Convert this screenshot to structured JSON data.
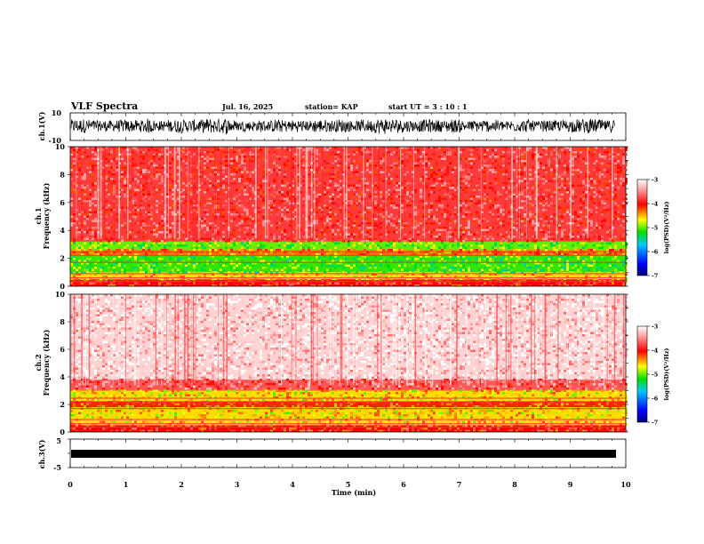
{
  "header": {
    "title": "VLF Spectra",
    "date": "Jul. 16, 2025",
    "station": "station= KAP",
    "start": "start  UT =   3 : 10 : 1"
  },
  "chart_data": [
    {
      "type": "line",
      "name": "ch1 waveform",
      "ylabel": "ch.1(V)",
      "ylim": [
        -10,
        10
      ],
      "ytick_labels": [
        "10",
        "-10"
      ],
      "xlim": [
        0,
        10
      ],
      "data_extent_min": 9.8,
      "description_band": "noisy signal fluctuating roughly between -6 and +7 V"
    },
    {
      "type": "heatmap",
      "name": "ch1 spectrogram",
      "ylabel": "ch.1\nFrequency (kHz)",
      "ylabel_line1": "ch.1",
      "ylabel_line2": "Frequency (kHz)",
      "ylim": [
        0,
        10
      ],
      "ytick_labels": [
        "0",
        "2",
        "4",
        "6",
        "8",
        "10"
      ],
      "xlim": [
        0,
        10
      ],
      "bands": [
        {
          "from_khz": 0.0,
          "to_khz": 0.5,
          "level": -4.0
        },
        {
          "from_khz": 0.5,
          "to_khz": 1.0,
          "level": -4.6
        },
        {
          "from_khz": 1.0,
          "to_khz": 2.2,
          "level": -5.1
        },
        {
          "from_khz": 2.2,
          "to_khz": 2.6,
          "level": -4.3
        },
        {
          "from_khz": 2.6,
          "to_khz": 3.2,
          "level": -5.0
        },
        {
          "from_khz": 3.2,
          "to_khz": 10.0,
          "level": -3.8
        }
      ],
      "colorbar": {
        "label": "log(PSD)(V²/Hz)",
        "range": [
          -7,
          -3
        ],
        "tick_labels": [
          "-3",
          "-4",
          "-5",
          "-6",
          "-7"
        ]
      }
    },
    {
      "type": "heatmap",
      "name": "ch2 spectrogram",
      "ylabel_line1": "ch.2",
      "ylabel_line2": "Frequency (kHz)",
      "ylim": [
        0,
        10
      ],
      "ytick_labels": [
        "0",
        "2",
        "4",
        "6",
        "8",
        "10"
      ],
      "xlim": [
        0,
        10
      ],
      "bands": [
        {
          "from_khz": 0.0,
          "to_khz": 0.5,
          "level": -4.0
        },
        {
          "from_khz": 0.5,
          "to_khz": 1.8,
          "level": -4.6
        },
        {
          "from_khz": 1.8,
          "to_khz": 2.2,
          "level": -4.1
        },
        {
          "from_khz": 2.2,
          "to_khz": 3.0,
          "level": -4.6
        },
        {
          "from_khz": 3.0,
          "to_khz": 3.8,
          "level": -3.7
        },
        {
          "from_khz": 3.8,
          "to_khz": 10.0,
          "level": -3.2
        }
      ],
      "colorbar": {
        "label": "log(PSD)(V²/Hz)",
        "range": [
          -7,
          -3
        ],
        "tick_labels": [
          "-3",
          "-4",
          "-5",
          "-6",
          "-7"
        ]
      }
    },
    {
      "type": "line",
      "name": "ch3 waveform",
      "ylabel": "ch.3(V)",
      "ylim": [
        -5,
        5
      ],
      "ytick_labels": [
        "5",
        "-5"
      ],
      "level_v": 0,
      "xlim": [
        0,
        10
      ],
      "xlabel": "Time (min)",
      "xtick_labels": [
        "0",
        "1",
        "2",
        "3",
        "4",
        "5",
        "6",
        "7",
        "8",
        "9",
        "10"
      ]
    }
  ],
  "colors": {
    "waveform": "#000000",
    "axis": "#000000",
    "colormap": [
      "#00007a",
      "#0000ff",
      "#00c8ff",
      "#00e000",
      "#ffff00",
      "#ff0000",
      "#ffffff"
    ]
  }
}
